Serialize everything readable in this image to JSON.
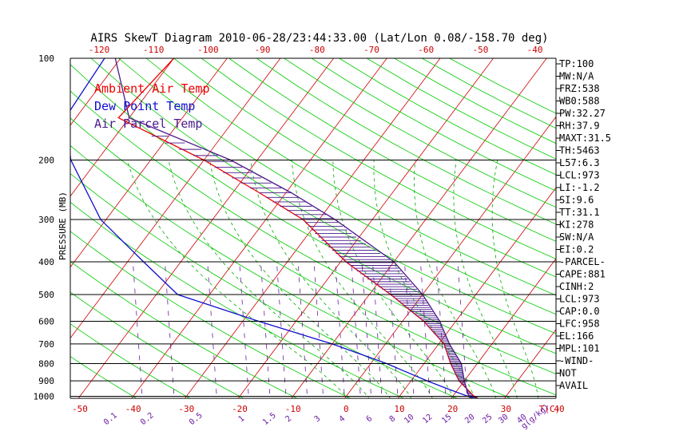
{
  "title": "AIRS SkewT Diagram 2010-06-28/23:44:33.00 (Lat/Lon 0.08/-158.70 deg)",
  "ylabel": "PRESSURE (MB)",
  "colors": {
    "ambient": "#ee0000",
    "dewpoint": "#1010cc",
    "parcel": "#4b1a8c",
    "dry_adiabat": "#00cc00",
    "moist_adiabat": "#00aa00",
    "mixing_ratio": "#6a1aa0",
    "isobar": "#000000"
  },
  "legend": [
    {
      "label": "Ambient Air Temp",
      "color": "#ee0000"
    },
    {
      "label": "Dew Point Temp",
      "color": "#1010cc"
    },
    {
      "label": "Air Parcel Temp",
      "color": "#4b1a8c"
    }
  ],
  "chart_data": {
    "type": "line",
    "title": "AIRS SkewT Diagram 2010-06-28/23:44:33.00 (Lat/Lon 0.08/-158.70 deg)",
    "ylabel": "PRESSURE (MB)",
    "y_scale": "log",
    "y_ticks": [
      100,
      200,
      300,
      400,
      500,
      600,
      700,
      800,
      900,
      1000
    ],
    "ylim": [
      1060,
      100
    ],
    "x_ticks_bottom": [
      -50,
      -40,
      -30,
      -20,
      -10,
      0,
      10,
      20,
      30,
      40
    ],
    "x_unit": "T(C)",
    "x_ticks_top": [
      -120,
      -110,
      -100,
      -90,
      -80,
      -70,
      -60,
      -50,
      -40
    ],
    "mixing_ratio_ticks": [
      "0.1",
      "0.2",
      "0.5",
      "1",
      "1.5",
      "2",
      "3",
      "4",
      "6",
      "8",
      "10",
      "12",
      "15",
      "20",
      "25",
      "30",
      "40"
    ],
    "mixing_ratio_unit": "g(g/kg)",
    "series": [
      {
        "name": "Ambient Air Temp",
        "color": "#ee0000",
        "points": [
          [
            100,
            -80
          ],
          [
            150,
            -82
          ],
          [
            200,
            -60
          ],
          [
            250,
            -45
          ],
          [
            300,
            -33
          ],
          [
            400,
            -19
          ],
          [
            500,
            -6
          ],
          [
            600,
            4
          ],
          [
            700,
            11
          ],
          [
            800,
            15
          ],
          [
            900,
            19
          ],
          [
            1000,
            24
          ],
          [
            1012,
            25
          ]
        ]
      },
      {
        "name": "Dew Point Temp",
        "color": "#1010cc",
        "points": [
          [
            100,
            -93
          ],
          [
            150,
            -92
          ],
          [
            200,
            -85
          ],
          [
            300,
            -71
          ],
          [
            400,
            -57
          ],
          [
            500,
            -46
          ],
          [
            600,
            -27
          ],
          [
            700,
            -10
          ],
          [
            800,
            3
          ],
          [
            900,
            13
          ],
          [
            950,
            18
          ],
          [
            1012,
            24
          ]
        ]
      },
      {
        "name": "Air Parcel Temp",
        "color": "#4b1a8c",
        "points": [
          [
            100,
            -91
          ],
          [
            150,
            -80
          ],
          [
            200,
            -55
          ],
          [
            250,
            -39
          ],
          [
            300,
            -27
          ],
          [
            400,
            -10
          ],
          [
            500,
            0
          ],
          [
            600,
            7
          ],
          [
            700,
            12
          ],
          [
            800,
            17
          ],
          [
            900,
            20
          ],
          [
            1000,
            23
          ],
          [
            1012,
            25
          ]
        ]
      }
    ]
  },
  "indices": [
    "TP:100",
    "MW:N/A",
    "FRZ:538",
    "WB0:588",
    "PW:32.27",
    "RH:37.9",
    "MAXT:31.5",
    "TH:5463",
    "L57:6.3",
    "LCL:973",
    "LI:-1.2",
    "SI:9.6",
    "TT:31.1",
    "KI:278",
    "SW:N/A",
    "EI:0.2",
    "-PARCEL-",
    "CAPE:881",
    "CINH:2",
    "LCL:973",
    "CAP:0.0",
    "LFC:958",
    "EL:166",
    "MPL:101",
    "-WIND-",
    "NOT",
    "AVAIL"
  ]
}
